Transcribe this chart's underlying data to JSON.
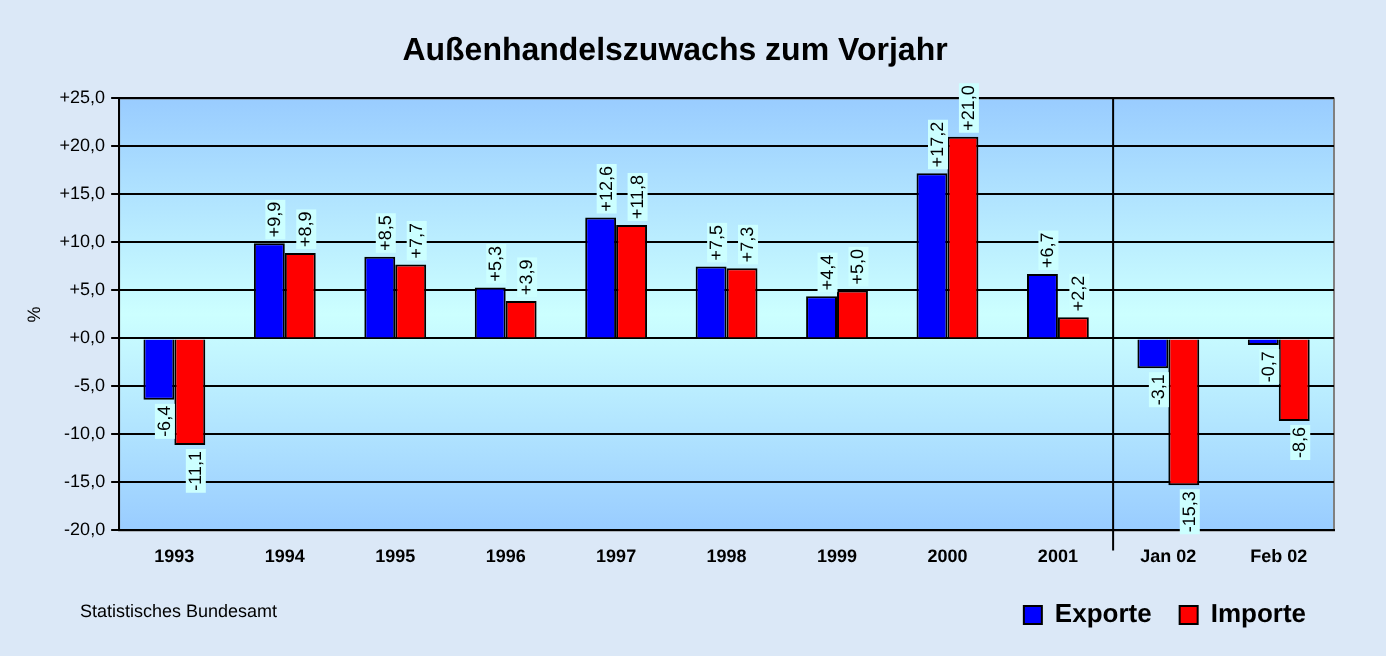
{
  "chart_data": {
    "type": "bar",
    "title": "Außenhandelszuwachs zum Vorjahr",
    "ylabel": "%",
    "categories": [
      "1993",
      "1994",
      "1995",
      "1996",
      "1997",
      "1998",
      "1999",
      "2000",
      "2001",
      "Jan 02",
      "Feb 02"
    ],
    "series": [
      {
        "name": "Exporte",
        "color": "#0000ff",
        "values": [
          -6.4,
          9.9,
          8.5,
          5.3,
          12.6,
          7.5,
          4.4,
          17.2,
          6.7,
          -3.1,
          -0.7
        ],
        "value_labels": [
          "-6,4",
          "+9,9",
          "+8,5",
          "+5,3",
          "+12,6",
          "+7,5",
          "+4,4",
          "+17,2",
          "+6,7",
          "-3,1",
          "-0,7"
        ]
      },
      {
        "name": "Importe",
        "color": "#ff0000",
        "values": [
          -11.1,
          8.9,
          7.7,
          3.9,
          11.8,
          7.3,
          5.0,
          21.0,
          2.2,
          -15.3,
          -8.6
        ],
        "value_labels": [
          "-11,1",
          "+8,9",
          "+7,7",
          "+3,9",
          "+11,8",
          "+7,3",
          "+5,0",
          "+21,0",
          "+2,2",
          "-15,3",
          "-8,6"
        ]
      }
    ],
    "ylim": [
      -20,
      25
    ],
    "yticks": [
      {
        "value": -20,
        "label": "-20,0"
      },
      {
        "value": -15,
        "label": "-15,0"
      },
      {
        "value": -10,
        "label": "-10,0"
      },
      {
        "value": -5,
        "label": "-5,0"
      },
      {
        "value": 0,
        "label": "+0,0"
      },
      {
        "value": 5,
        "label": "+5,0"
      },
      {
        "value": 10,
        "label": "+10,0"
      },
      {
        "value": 15,
        "label": "+15,0"
      },
      {
        "value": 20,
        "label": "+20,0"
      },
      {
        "value": 25,
        "label": "+25,0"
      }
    ],
    "grid": "y",
    "legend": "bottom right",
    "annotations": [
      "Statistisches Bundesamt"
    ]
  }
}
